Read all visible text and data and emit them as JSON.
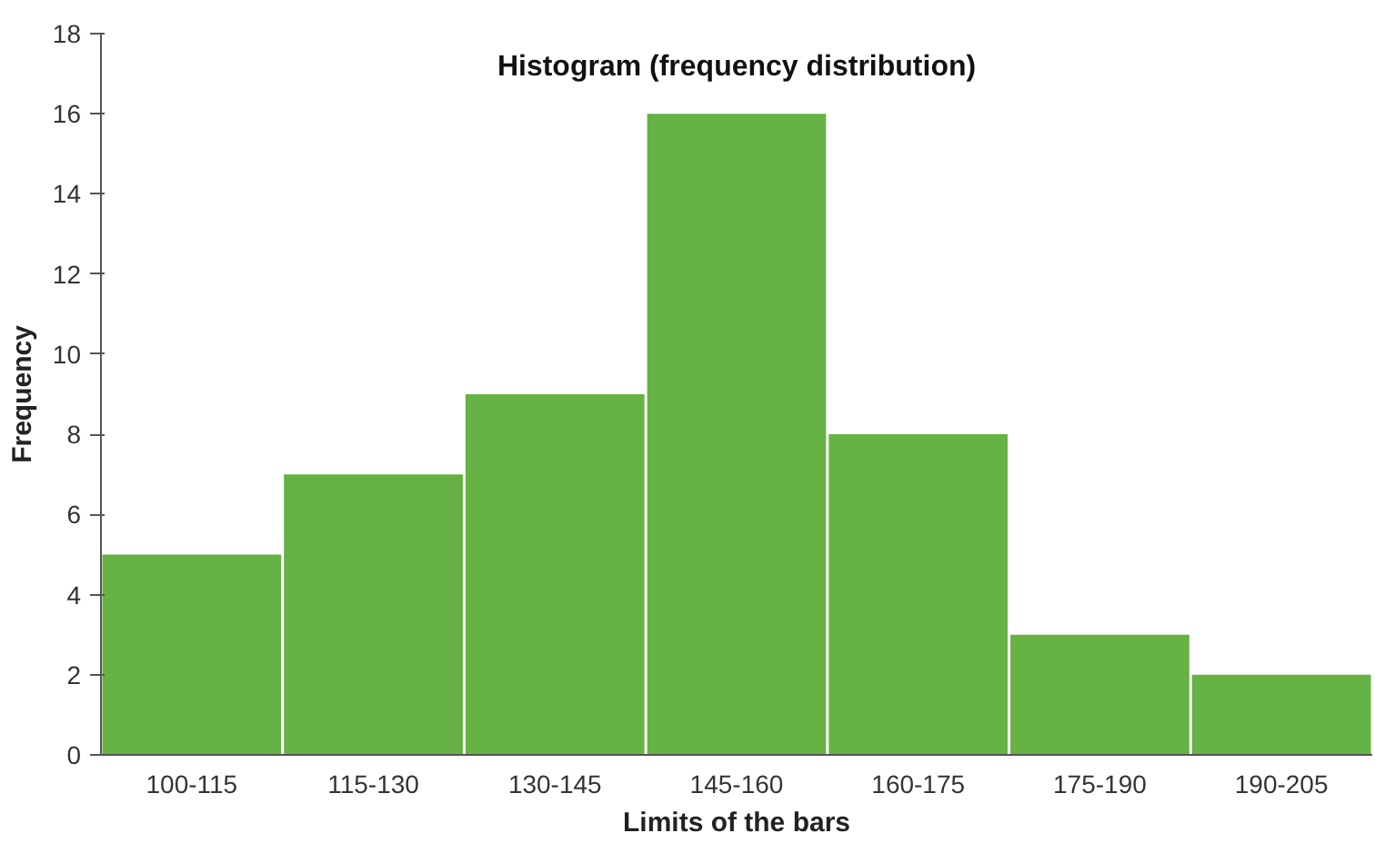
{
  "chart_data": {
    "type": "bar",
    "title": "Histogram (frequency distribution)",
    "xlabel": "Limits of the bars",
    "ylabel": "Frequency",
    "categories": [
      "100-115",
      "115-130",
      "130-145",
      "145-160",
      "160-175",
      "175-190",
      "190-205"
    ],
    "values": [
      5,
      7,
      9,
      16,
      8,
      3,
      2
    ],
    "color": "#66b244",
    "ylim": [
      0,
      18
    ],
    "yticks": [
      0,
      2,
      4,
      6,
      8,
      10,
      12,
      14,
      16,
      18
    ],
    "grid": false
  }
}
